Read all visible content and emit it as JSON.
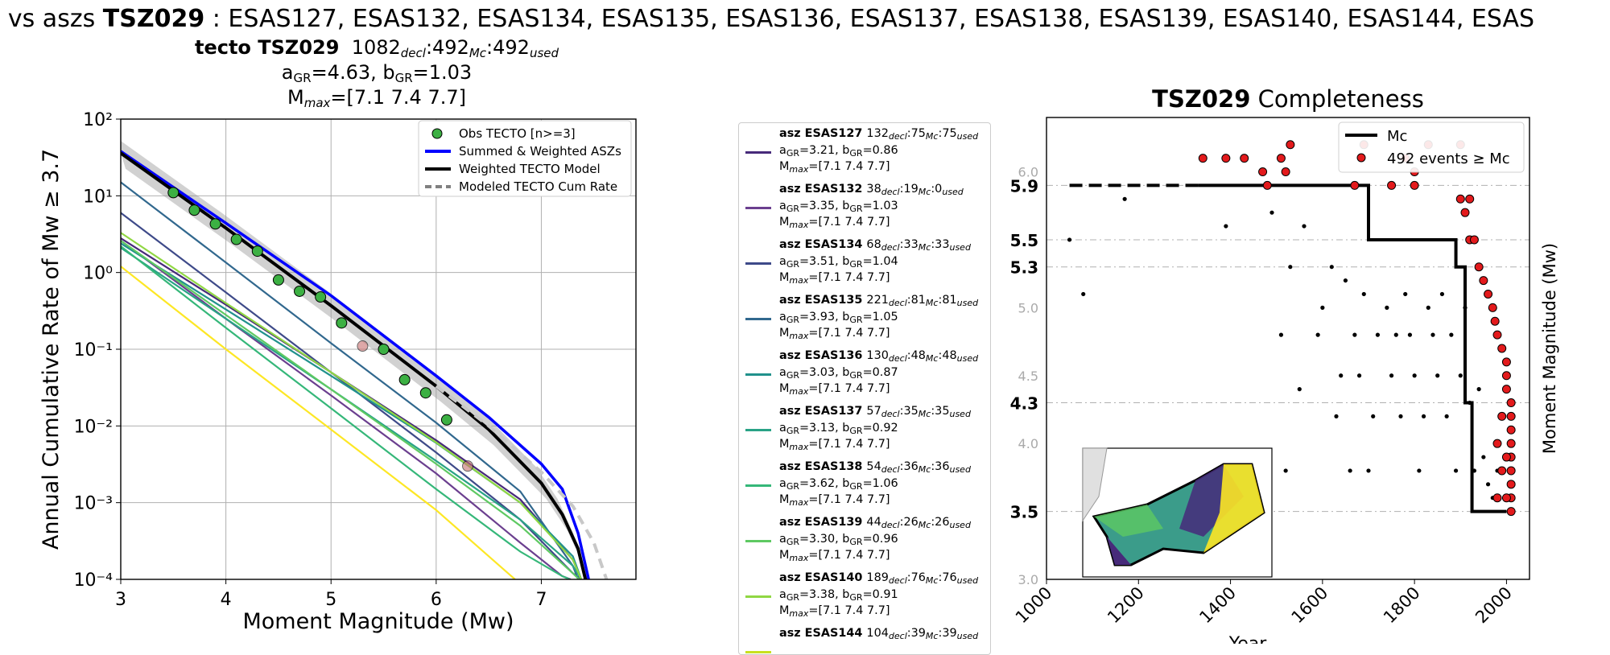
{
  "figure": {
    "suptitle_prefix": "o vs aszs ",
    "suptitle_bold": "TSZ029",
    "suptitle_rest": " : ESAS127, ESAS132, ESAS134, ESAS135, ESAS136, ESAS137, ESAS138, ESAS139, ESAS140, ESAS144, ESAS"
  },
  "left_title": {
    "line1_bold": "tecto TSZ029",
    "n_decl": "1082",
    "decl_sub": "decl",
    "n_mc": ":492",
    "mc_sub": "Mc",
    "n_used": ":492",
    "used_sub": "used",
    "line2": "a_GR=4.63,  b_GR=1.03",
    "a_label": "a",
    "a_sub": "GR",
    "a_val": "=4.63,  b",
    "b_sub": "GR",
    "b_val": "=1.03",
    "mmax_label": "M",
    "mmax_sub": "max",
    "mmax_val": "=[7.1 7.4 7.7]"
  },
  "asz_legend": [
    {
      "bold": "asz ESAS127",
      "decl": "132",
      "mc": ":75",
      "used": ":75",
      "a": "3.21",
      "b": "0.86",
      "mmax": "[7.1 7.4 7.7]",
      "color": "#472a7a"
    },
    {
      "bold": "asz ESAS132",
      "decl": "38",
      "mc": ":19",
      "used": ":0",
      "a": "3.35",
      "b": "1.03",
      "mmax": "[7.1 7.4 7.7]",
      "color": "#6b3f8f"
    },
    {
      "bold": "asz ESAS134",
      "decl": "68",
      "mc": ":33",
      "used": ":33",
      "a": "3.51",
      "b": "1.04",
      "mmax": "[7.1 7.4 7.7]",
      "color": "#3e4a89"
    },
    {
      "bold": "asz ESAS135",
      "decl": "221",
      "mc": ":81",
      "used": ":81",
      "a": "3.93",
      "b": "1.05",
      "mmax": "[7.1 7.4 7.7]",
      "color": "#31688e"
    },
    {
      "bold": "asz ESAS136",
      "decl": "130",
      "mc": ":48",
      "used": ":48",
      "a": "3.03",
      "b": "0.87",
      "mmax": "[7.1 7.4 7.7]",
      "color": "#21918c"
    },
    {
      "bold": "asz ESAS137",
      "decl": "57",
      "mc": ":35",
      "used": ":35",
      "a": "3.13",
      "b": "0.92",
      "mmax": "[7.1 7.4 7.7]",
      "color": "#29a386"
    },
    {
      "bold": "asz ESAS138",
      "decl": "54",
      "mc": ":36",
      "used": ":36",
      "a": "3.62",
      "b": "1.06",
      "mmax": "[7.1 7.4 7.7]",
      "color": "#35b779"
    },
    {
      "bold": "asz ESAS139",
      "decl": "44",
      "mc": ":26",
      "used": ":26",
      "a": "3.30",
      "b": "0.96",
      "mmax": "[7.1 7.4 7.7]",
      "color": "#5ec962"
    },
    {
      "bold": "asz ESAS140",
      "decl": "189",
      "mc": ":76",
      "used": ":76",
      "a": "3.38",
      "b": "0.91",
      "mmax": "[7.1 7.4 7.7]",
      "color": "#90d743"
    },
    {
      "bold": "asz ESAS144",
      "decl": "104",
      "mc": ":39",
      "used": ":39",
      "a": "",
      "b": "",
      "mmax": "",
      "color": "#c8e020"
    }
  ],
  "right_title": {
    "bold": "TSZ029",
    "rest": " Completeness"
  },
  "chart_data": [
    {
      "type": "line",
      "xlabel": "Moment Magnitude (Mw)",
      "ylabel": "Annual Cumulative Rate of Mw  ≥  3.7",
      "xlim": [
        3,
        7.9
      ],
      "ylim": [
        0.0001,
        100
      ],
      "yscale": "log",
      "grid": true,
      "legend_position": "top-right",
      "x_ticks": [
        "3",
        "4",
        "5",
        "6",
        "7"
      ],
      "y_ticks": [
        "10⁻⁴",
        "10⁻³",
        "10⁻²",
        "10⁻¹",
        "10⁰",
        "10¹",
        "10²"
      ],
      "legend": [
        "Obs TECTO [n>=3]",
        "Summed & Weighted ASZs",
        "Weighted TECTO Model",
        "Modeled TECTO Cum Rate"
      ],
      "series": [
        {
          "name": "Obs TECTO [n>=3]",
          "kind": "points",
          "color": "#3cb043",
          "x": [
            3.5,
            3.7,
            3.9,
            4.1,
            4.3,
            4.5,
            4.7,
            4.9,
            5.1,
            5.5,
            5.7,
            5.9,
            6.1
          ],
          "y": [
            11,
            6.5,
            4.3,
            2.7,
            1.9,
            0.8,
            0.57,
            0.48,
            0.22,
            0.1,
            0.04,
            0.027,
            0.012
          ]
        },
        {
          "name": "",
          "kind": "points_faded",
          "color": "#c87070",
          "x": [
            5.3,
            6.3
          ],
          "y": [
            0.11,
            0.003
          ]
        },
        {
          "name": "Summed & Weighted ASZs",
          "kind": "line",
          "color": "#0000ff",
          "x": [
            3,
            4,
            5,
            6,
            6.5,
            7,
            7.2,
            7.35,
            7.45
          ],
          "y": [
            38,
            4.4,
            0.5,
            0.045,
            0.013,
            0.0032,
            0.0015,
            0.0004,
            0.0001
          ]
        },
        {
          "name": "Weighted TECTO Model",
          "kind": "line",
          "color": "#000000",
          "x": [
            3,
            4,
            5,
            6,
            6.5,
            7,
            7.2,
            7.35,
            7.42
          ],
          "y": [
            36,
            3.8,
            0.37,
            0.033,
            0.009,
            0.0018,
            0.0007,
            0.00025,
            0.0001
          ]
        },
        {
          "name": "Modeled TECTO Cum Rate",
          "kind": "dashed",
          "color": "#c8c8c8",
          "x": [
            6,
            6.5,
            7,
            7.3,
            7.5,
            7.62
          ],
          "y": [
            0.033,
            0.01,
            0.0025,
            0.0009,
            0.0003,
            0.0001
          ]
        },
        {
          "name": "ESAS127",
          "kind": "line",
          "color": "#472a7a",
          "x": [
            3,
            4,
            5,
            6,
            6.8,
            7.3,
            7.38
          ],
          "y": [
            2.8,
            0.38,
            0.05,
            0.0065,
            0.0011,
            0.00018,
            0.0001
          ]
        },
        {
          "name": "ESAS132",
          "kind": "line",
          "color": "#6b3f8f",
          "x": [
            3,
            4,
            5,
            6,
            6.8,
            7.2,
            7.28
          ],
          "y": [
            2.6,
            0.25,
            0.025,
            0.0024,
            0.0003,
            0.00011,
            0.0001
          ]
        },
        {
          "name": "ESAS134",
          "kind": "line",
          "color": "#3e4a89",
          "x": [
            3,
            4,
            5,
            6,
            6.8,
            7.3,
            7.38
          ],
          "y": [
            6,
            0.55,
            0.05,
            0.0045,
            0.0006,
            0.00012,
            0.0001
          ]
        },
        {
          "name": "ESAS135",
          "kind": "line",
          "color": "#31688e",
          "x": [
            3,
            4,
            5,
            6,
            6.8,
            7.3,
            7.35
          ],
          "y": [
            15,
            1.35,
            0.12,
            0.011,
            0.0014,
            0.00015,
            0.0001
          ]
        },
        {
          "name": "ESAS136",
          "kind": "line",
          "color": "#21918c",
          "x": [
            3,
            4,
            5,
            6,
            6.8,
            7.3,
            7.38
          ],
          "y": [
            2.4,
            0.33,
            0.045,
            0.006,
            0.001,
            0.0002,
            0.0001
          ]
        },
        {
          "name": "ESAS137",
          "kind": "line",
          "color": "#29a386",
          "x": [
            3,
            4,
            5,
            6,
            6.8,
            7.3,
            7.38
          ],
          "y": [
            2.1,
            0.25,
            0.03,
            0.0035,
            0.0006,
            0.00015,
            0.0001
          ]
        },
        {
          "name": "ESAS138",
          "kind": "line",
          "color": "#35b779",
          "x": [
            3,
            4,
            5,
            6,
            6.8,
            7.2,
            7.27
          ],
          "y": [
            2.2,
            0.19,
            0.017,
            0.0015,
            0.00023,
            0.00011,
            0.0001
          ]
        },
        {
          "name": "ESAS139",
          "kind": "line",
          "color": "#5ec962",
          "x": [
            3,
            4,
            5,
            6,
            6.8,
            7.3,
            7.36
          ],
          "y": [
            2.6,
            0.28,
            0.03,
            0.0032,
            0.0005,
            0.00012,
            0.0001
          ]
        },
        {
          "name": "ESAS140",
          "kind": "line",
          "color": "#90d743",
          "x": [
            3,
            4,
            5,
            6,
            6.8,
            7.3,
            7.38
          ],
          "y": [
            3.3,
            0.4,
            0.05,
            0.0061,
            0.001,
            0.00018,
            0.0001
          ]
        },
        {
          "name": "ESAS144",
          "kind": "line",
          "color": "#fde725",
          "x": [
            3,
            4,
            5,
            6,
            6.75
          ],
          "y": [
            1.2,
            0.1,
            0.009,
            0.0008,
            0.0001
          ]
        }
      ]
    },
    {
      "type": "scatter",
      "xlabel": "Year",
      "ylabel": "Moment Magnitude (Mw)",
      "xlim": [
        1000,
        2050
      ],
      "ylim": [
        3.0,
        6.4
      ],
      "grid": false,
      "legend_position": "top-right",
      "x_ticks": [
        "1000",
        "1200",
        "1400",
        "1600",
        "1800",
        "2000"
      ],
      "y_ticks_minor": [
        "3.0",
        "4.0",
        "4.5",
        "5.0",
        "6.0"
      ],
      "y_ticks_bold": [
        "3.5",
        "4.3",
        "5.3",
        "5.5",
        "5.9"
      ],
      "legend": [
        "Mc",
        "492 events  ≥  Mc"
      ],
      "mc_step": {
        "x": [
          1050,
          1700,
          1700,
          1890,
          1890,
          1910,
          1910,
          1925,
          1925,
          1960,
          1960,
          2000
        ],
        "y": [
          5.9,
          5.9,
          5.5,
          5.5,
          5.3,
          5.3,
          4.3,
          4.3,
          3.5,
          3.5,
          3.5,
          3.5
        ],
        "dashed_until": 1330
      },
      "points_black": [
        [
          1050,
          5.5
        ],
        [
          1080,
          5.1
        ],
        [
          1170,
          5.8
        ],
        [
          1390,
          5.6
        ],
        [
          1490,
          5.7
        ],
        [
          1510,
          4.8
        ],
        [
          1520,
          3.8
        ],
        [
          1530,
          5.3
        ],
        [
          1550,
          4.4
        ],
        [
          1560,
          5.6
        ],
        [
          1590,
          4.8
        ],
        [
          1600,
          5.0
        ],
        [
          1620,
          5.3
        ],
        [
          1630,
          4.2
        ],
        [
          1640,
          4.5
        ],
        [
          1650,
          5.2
        ],
        [
          1660,
          3.8
        ],
        [
          1670,
          4.8
        ],
        [
          1680,
          4.5
        ],
        [
          1690,
          5.1
        ],
        [
          1700,
          3.8
        ],
        [
          1710,
          4.2
        ],
        [
          1720,
          4.8
        ],
        [
          1740,
          5.0
        ],
        [
          1750,
          4.5
        ],
        [
          1760,
          4.8
        ],
        [
          1770,
          4.2
        ],
        [
          1780,
          5.1
        ],
        [
          1790,
          4.8
        ],
        [
          1800,
          4.5
        ],
        [
          1810,
          3.8
        ],
        [
          1820,
          4.2
        ],
        [
          1830,
          5.0
        ],
        [
          1840,
          4.8
        ],
        [
          1850,
          4.5
        ],
        [
          1860,
          5.1
        ],
        [
          1870,
          4.2
        ],
        [
          1880,
          4.8
        ],
        [
          1890,
          3.8
        ],
        [
          1900,
          4.5
        ],
        [
          1910,
          5.0
        ],
        [
          1920,
          4.3
        ],
        [
          1930,
          3.8
        ],
        [
          1940,
          4.4
        ],
        [
          1950,
          3.9
        ],
        [
          1960,
          3.7
        ],
        [
          1970,
          3.6
        ],
        [
          1980,
          3.8
        ]
      ],
      "points_red": [
        [
          1340,
          6.1
        ],
        [
          1390,
          6.1
        ],
        [
          1430,
          6.1
        ],
        [
          1470,
          6.0
        ],
        [
          1480,
          5.9
        ],
        [
          1510,
          6.1
        ],
        [
          1520,
          6.0
        ],
        [
          1530,
          6.2
        ],
        [
          1670,
          5.9
        ],
        [
          1690,
          6.2
        ],
        [
          1750,
          5.9
        ],
        [
          1780,
          6.1
        ],
        [
          1800,
          5.9
        ],
        [
          1800,
          6.0
        ],
        [
          1830,
          6.2
        ],
        [
          1900,
          6.2
        ],
        [
          1900,
          5.8
        ],
        [
          1910,
          5.7
        ],
        [
          1920,
          5.8
        ],
        [
          1920,
          5.5
        ],
        [
          1930,
          5.5
        ],
        [
          1940,
          5.3
        ],
        [
          1950,
          5.2
        ],
        [
          1960,
          5.1
        ],
        [
          1970,
          5.0
        ],
        [
          1975,
          4.9
        ],
        [
          1980,
          4.8
        ],
        [
          1990,
          4.7
        ],
        [
          2000,
          4.6
        ],
        [
          2000,
          4.5
        ],
        [
          2000,
          4.4
        ],
        [
          2010,
          4.3
        ],
        [
          2010,
          4.2
        ],
        [
          2010,
          4.1
        ],
        [
          2010,
          4.0
        ],
        [
          2010,
          3.9
        ],
        [
          2010,
          3.8
        ],
        [
          2010,
          3.7
        ],
        [
          2010,
          3.6
        ],
        [
          2010,
          3.5
        ],
        [
          2000,
          3.9
        ],
        [
          2000,
          3.6
        ],
        [
          1990,
          4.2
        ],
        [
          1990,
          3.8
        ],
        [
          1980,
          4.0
        ],
        [
          1980,
          3.6
        ]
      ]
    }
  ]
}
